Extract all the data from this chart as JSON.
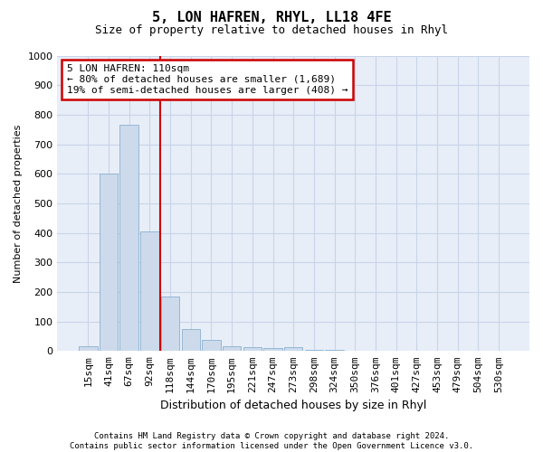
{
  "title": "5, LON HAFREN, RHYL, LL18 4FE",
  "subtitle": "Size of property relative to detached houses in Rhyl",
  "xlabel": "Distribution of detached houses by size in Rhyl",
  "ylabel": "Number of detached properties",
  "footer": "Contains HM Land Registry data © Crown copyright and database right 2024.\nContains public sector information licensed under the Open Government Licence v3.0.",
  "categories": [
    "15sqm",
    "41sqm",
    "67sqm",
    "92sqm",
    "118sqm",
    "144sqm",
    "170sqm",
    "195sqm",
    "221sqm",
    "247sqm",
    "273sqm",
    "298sqm",
    "324sqm",
    "350sqm",
    "376sqm",
    "401sqm",
    "427sqm",
    "453sqm",
    "479sqm",
    "504sqm",
    "530sqm"
  ],
  "values": [
    15,
    600,
    765,
    405,
    185,
    75,
    37,
    17,
    12,
    10,
    12,
    5,
    3,
    2,
    1,
    1,
    1,
    0,
    0,
    0,
    0
  ],
  "bar_color": "#ccdaeb",
  "bar_edge_color": "#8ab0d0",
  "vline_color": "#cc0000",
  "annotation_title": "5 LON HAFREN: 110sqm",
  "annotation_line1": "← 80% of detached houses are smaller (1,689)",
  "annotation_line2": "19% of semi-detached houses are larger (408) →",
  "annotation_box_color": "#cc0000",
  "ylim": [
    0,
    1000
  ],
  "yticks": [
    0,
    100,
    200,
    300,
    400,
    500,
    600,
    700,
    800,
    900,
    1000
  ],
  "grid_color": "#c8d4e8",
  "plot_background": "#e8eef8",
  "fig_background": "#ffffff",
  "title_fontsize": 11,
  "subtitle_fontsize": 9,
  "xlabel_fontsize": 9,
  "ylabel_fontsize": 8,
  "tick_fontsize": 8,
  "annotation_fontsize": 8,
  "footer_fontsize": 6.5
}
